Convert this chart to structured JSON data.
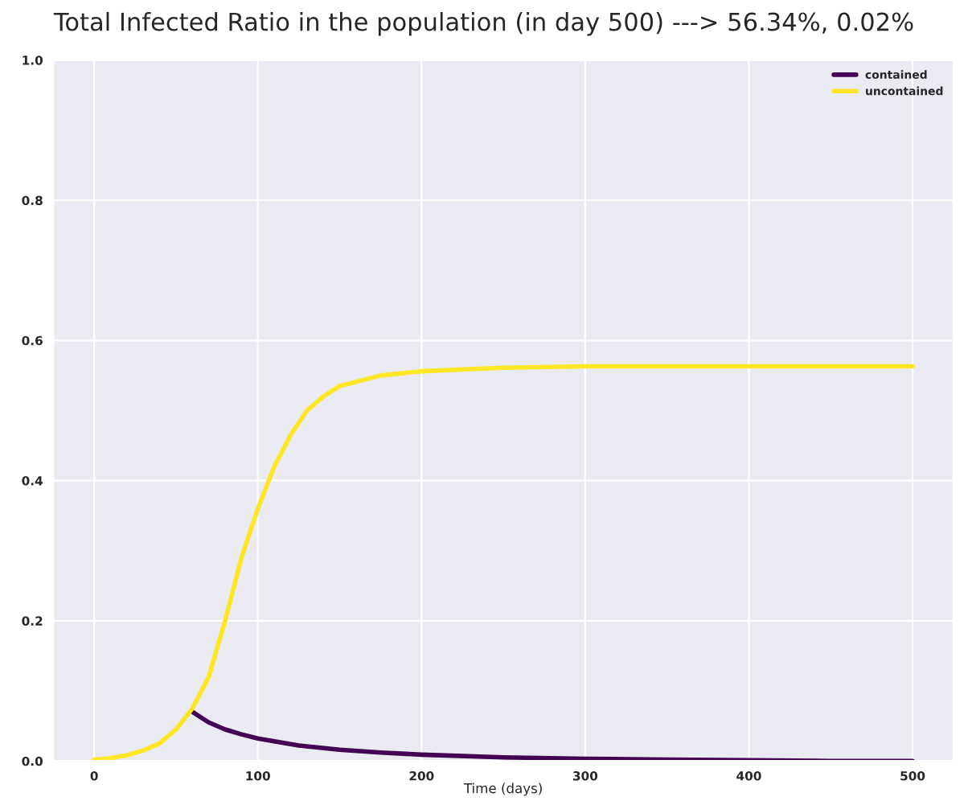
{
  "chart_data": {
    "type": "line",
    "title": "Total Infected Ratio in the population (in day 500) ---> 56.34%, 0.02%",
    "xlabel": "Time (days)",
    "series": [
      {
        "name": "contained",
        "color": "#440154",
        "x": [
          60,
          70,
          80,
          90,
          100,
          125,
          150,
          175,
          200,
          250,
          300,
          350,
          400,
          450,
          500
        ],
        "values": [
          0.07,
          0.055,
          0.045,
          0.038,
          0.032,
          0.022,
          0.016,
          0.012,
          0.009,
          0.005,
          0.003,
          0.002,
          0.001,
          0.0,
          0.0
        ]
      },
      {
        "name": "uncontained",
        "color": "#fde725",
        "x": [
          0,
          10,
          20,
          30,
          40,
          50,
          60,
          70,
          80,
          90,
          100,
          110,
          120,
          130,
          140,
          150,
          175,
          200,
          250,
          300,
          400,
          500
        ],
        "values": [
          0.002,
          0.004,
          0.008,
          0.015,
          0.025,
          0.045,
          0.075,
          0.12,
          0.2,
          0.29,
          0.36,
          0.42,
          0.465,
          0.5,
          0.52,
          0.535,
          0.55,
          0.556,
          0.561,
          0.563,
          0.563,
          0.563
        ]
      }
    ],
    "xlim": [
      -25,
      525
    ],
    "ylim": [
      0,
      1.0
    ],
    "xticks": [
      0,
      100,
      200,
      300,
      400,
      500
    ],
    "yticks": [
      {
        "value": 0,
        "label": "0.0"
      },
      0.2,
      0.4,
      0.6,
      0.8,
      {
        "value": 1,
        "label": "1.0"
      }
    ],
    "grid": true,
    "legend": "top right",
    "marker": "none",
    "line_style": "solid"
  }
}
